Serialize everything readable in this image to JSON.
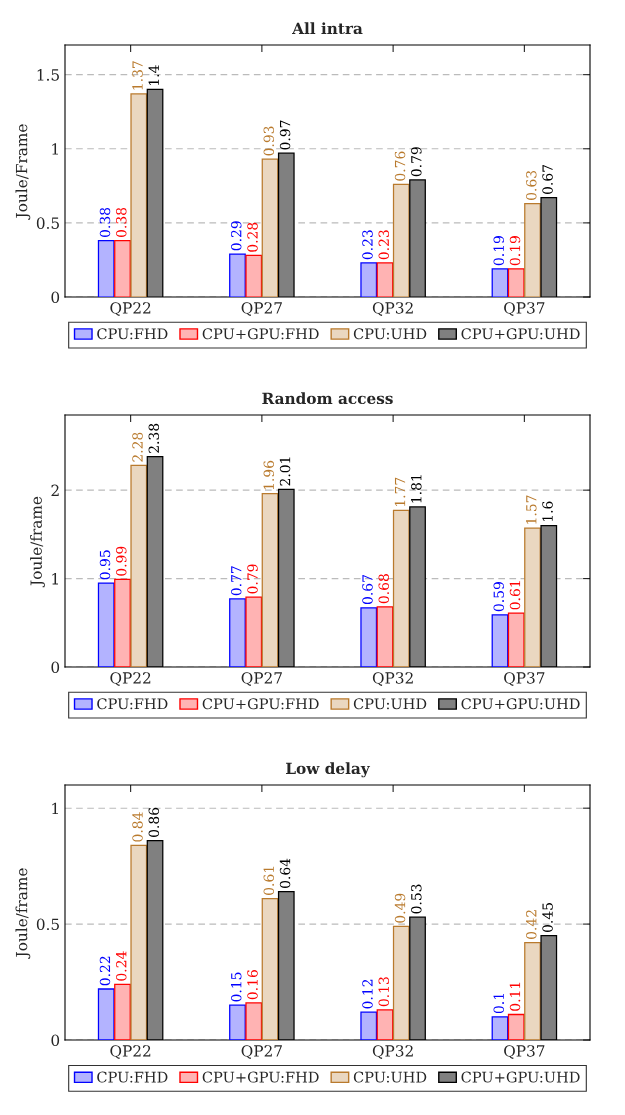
{
  "chart_data": [
    {
      "type": "bar",
      "title": "All intra",
      "ylabel": "Joule/Frame",
      "categories": [
        "QP22",
        "QP27",
        "QP32",
        "QP37"
      ],
      "ylim": [
        0,
        1.7
      ],
      "yticks": [
        0,
        0.5,
        1,
        1.5
      ],
      "grid": "y",
      "legend": "bottom",
      "data_labels": true,
      "series": [
        {
          "name": "CPU:FHD",
          "color": "#b3b3ff",
          "values": [
            0.38,
            0.29,
            0.23,
            0.19
          ]
        },
        {
          "name": "CPU+GPU:FHD",
          "color": "#ffb3b3",
          "values": [
            0.38,
            0.28,
            0.23,
            0.19
          ]
        },
        {
          "name": "CPU:UHD",
          "color": "#ead7c0",
          "values": [
            1.37,
            0.93,
            0.76,
            0.63
          ]
        },
        {
          "name": "CPU+GPU:UHD",
          "color": "#808080",
          "values": [
            1.4,
            0.97,
            0.79,
            0.67
          ]
        }
      ]
    },
    {
      "type": "bar",
      "title": "Random access",
      "ylabel": "Joule/frame",
      "categories": [
        "QP22",
        "QP27",
        "QP32",
        "QP37"
      ],
      "ylim": [
        0,
        2.85
      ],
      "yticks": [
        0,
        1,
        2
      ],
      "grid": "y",
      "legend": "bottom",
      "data_labels": true,
      "series": [
        {
          "name": "CPU:FHD",
          "color": "#b3b3ff",
          "values": [
            0.95,
            0.77,
            0.67,
            0.59
          ]
        },
        {
          "name": "CPU+GPU:FHD",
          "color": "#ffb3b3",
          "values": [
            0.99,
            0.79,
            0.68,
            0.61
          ]
        },
        {
          "name": "CPU:UHD",
          "color": "#ead7c0",
          "values": [
            2.28,
            1.96,
            1.77,
            1.57
          ]
        },
        {
          "name": "CPU+GPU:UHD",
          "color": "#808080",
          "values": [
            2.38,
            2.01,
            1.81,
            1.6
          ]
        }
      ]
    },
    {
      "type": "bar",
      "title": "Low delay",
      "ylabel": "Joule/frame",
      "categories": [
        "QP22",
        "QP27",
        "QP32",
        "QP37"
      ],
      "ylim": [
        0,
        1.1
      ],
      "yticks": [
        0,
        0.5,
        1
      ],
      "grid": "y",
      "legend": "bottom",
      "data_labels": true,
      "series": [
        {
          "name": "CPU:FHD",
          "color": "#b3b3ff",
          "values": [
            0.22,
            0.15,
            0.12,
            0.1
          ]
        },
        {
          "name": "CPU+GPU:FHD",
          "color": "#ffb3b3",
          "values": [
            0.24,
            0.16,
            0.13,
            0.11
          ]
        },
        {
          "name": "CPU:UHD",
          "color": "#ead7c0",
          "values": [
            0.84,
            0.61,
            0.49,
            0.42
          ]
        },
        {
          "name": "CPU+GPU:UHD",
          "color": "#808080",
          "values": [
            0.86,
            0.64,
            0.53,
            0.45
          ]
        }
      ]
    }
  ]
}
